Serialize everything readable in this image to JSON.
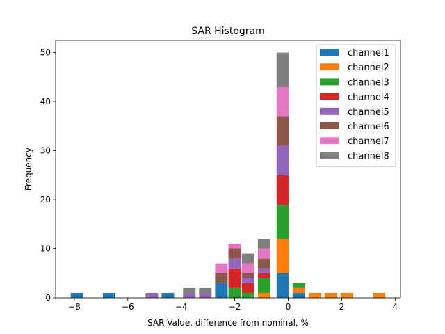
{
  "chart_data": {
    "type": "bar",
    "stacked": true,
    "title": "SAR Histogram",
    "xlabel": "SAR Value, difference from nominal, %",
    "ylabel": "Frequency",
    "xlim": [
      -8.7,
      4.2
    ],
    "ylim": [
      0,
      52.5
    ],
    "xticks": [
      -8,
      -6,
      -4,
      -2,
      0,
      2,
      4
    ],
    "xtick_labels": [
      "−8",
      "−6",
      "−4",
      "−2",
      "0",
      "2",
      "4"
    ],
    "yticks": [
      0,
      10,
      20,
      30,
      40,
      50
    ],
    "ytick_labels": [
      "0",
      "10",
      "20",
      "30",
      "40",
      "50"
    ],
    "bin_width": 0.47,
    "x": [
      -7.9,
      -6.7,
      -5.1,
      -4.5,
      -3.7,
      -3.1,
      -2.5,
      -2.0,
      -1.5,
      -0.9,
      -0.2,
      0.4,
      1.0,
      1.6,
      2.2,
      3.4
    ],
    "legend_position": "top-right",
    "series": [
      {
        "name": "channel1",
        "color": "#1f77b4",
        "values": [
          1,
          1,
          0,
          1,
          0,
          0,
          3,
          0,
          0,
          0,
          5,
          1,
          0,
          0,
          0,
          0
        ]
      },
      {
        "name": "channel2",
        "color": "#ff7f0e",
        "values": [
          0,
          0,
          0,
          0,
          0,
          0,
          0,
          0,
          0,
          1,
          7,
          1,
          1,
          1,
          1,
          1
        ]
      },
      {
        "name": "channel3",
        "color": "#2ca02c",
        "values": [
          0,
          0,
          0,
          0,
          0,
          0,
          0,
          2,
          1,
          3,
          7,
          1,
          0,
          0,
          0,
          0
        ]
      },
      {
        "name": "channel4",
        "color": "#d62728",
        "values": [
          0,
          0,
          0,
          0,
          0,
          0,
          0,
          4,
          2,
          1,
          6,
          0,
          0,
          0,
          0,
          0
        ]
      },
      {
        "name": "channel5",
        "color": "#9467bd",
        "values": [
          0,
          0,
          1,
          0,
          1,
          1,
          0,
          2,
          1,
          1,
          6,
          0,
          0,
          0,
          0,
          0
        ]
      },
      {
        "name": "channel6",
        "color": "#8c564b",
        "values": [
          0,
          0,
          0,
          0,
          0,
          0,
          2,
          2,
          1,
          2,
          6,
          0,
          0,
          0,
          0,
          0
        ]
      },
      {
        "name": "channel7",
        "color": "#e377c2",
        "values": [
          0,
          0,
          0,
          0,
          0,
          0,
          2,
          1,
          2,
          2,
          6,
          0,
          0,
          0,
          0,
          0
        ]
      },
      {
        "name": "channel8",
        "color": "#7f7f7f",
        "values": [
          0,
          0,
          0,
          0,
          1,
          1,
          0,
          0,
          2,
          2,
          7,
          0,
          0,
          0,
          0,
          0
        ]
      }
    ]
  }
}
